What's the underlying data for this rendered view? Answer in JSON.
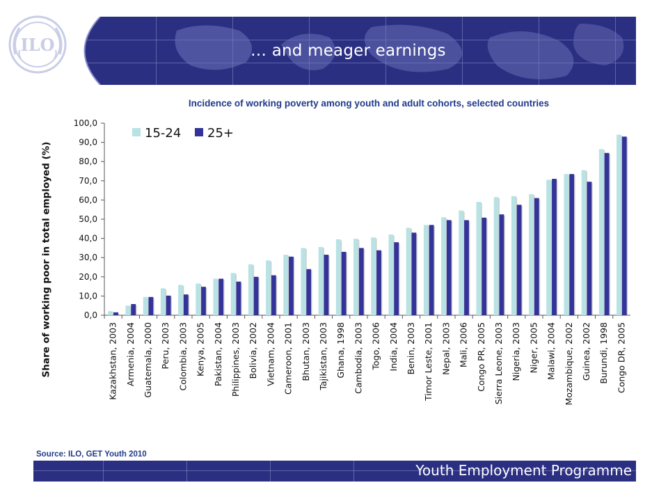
{
  "header": {
    "title": "… and meager earnings"
  },
  "logo": {
    "text": "ILO",
    "icon": "ilo-logo-icon"
  },
  "footer": {
    "label": "Youth Employment Programme"
  },
  "source": "Source: ILO, GET Youth 2010",
  "colors": {
    "band": "#2b2f82",
    "youth": "#b8e2e4",
    "adult": "#333399",
    "subtitle": "#1f3a8a"
  },
  "chart_data": {
    "type": "bar",
    "title": "Incidence of working poverty among youth and adult cohorts, selected countries",
    "ylabel": "Share of working poor in total employed (%)",
    "xlabel": "",
    "ylim": [
      0,
      100
    ],
    "yticks": [
      "0,0",
      "10,0",
      "20,0",
      "30,0",
      "40,0",
      "50,0",
      "60,0",
      "70,0",
      "80,0",
      "90,0",
      "100,0"
    ],
    "grid": false,
    "legend_position": "top-left",
    "categories": [
      "Kazakhstan, 2003",
      "Armenia, 2004",
      "Guatemala, 2000",
      "Peru, 2003",
      "Colombia, 2003",
      "Kenya, 2005",
      "Pakistan, 2004",
      "Philippines, 2003",
      "Bolivia, 2002",
      "Vietnam, 2004",
      "Cameroon, 2001",
      "Bhutan, 2003",
      "Tajikistan, 2003",
      "Ghana, 1998",
      "Cambodia, 2003",
      "Togo, 2006",
      "India, 2004",
      "Benin, 2003",
      "Timor Leste, 2001",
      "Nepal, 2003",
      "Mali, 2006",
      "Congo PR, 2005",
      "Sierra Leone, 2003",
      "Nigeria, 2003",
      "Niger, 2005",
      "Malawi, 2004",
      "Mozambique, 2002",
      "Guinea, 2002",
      "Burundi, 1998",
      "Congo DR, 2005"
    ],
    "series": [
      {
        "name": "15-24",
        "color": "#b8e2e4",
        "values": [
          2.1,
          5.0,
          9.5,
          14.0,
          15.8,
          16.5,
          19.0,
          22.0,
          26.5,
          28.5,
          31.5,
          35.0,
          35.5,
          39.5,
          39.8,
          40.5,
          42.0,
          45.5,
          47.0,
          51.0,
          54.5,
          59.0,
          61.5,
          62.0,
          63.0,
          70.5,
          73.5,
          75.5,
          86.5,
          94.0
        ]
      },
      {
        "name": "25+",
        "color": "#333399",
        "values": [
          1.5,
          5.8,
          9.5,
          10.2,
          10.8,
          14.8,
          19.0,
          17.5,
          20.0,
          20.8,
          30.5,
          24.0,
          31.5,
          33.0,
          35.0,
          33.8,
          38.0,
          43.0,
          47.0,
          49.5,
          49.5,
          50.8,
          52.5,
          57.5,
          61.0,
          71.0,
          73.5,
          69.5,
          84.5,
          93.0
        ]
      }
    ]
  }
}
